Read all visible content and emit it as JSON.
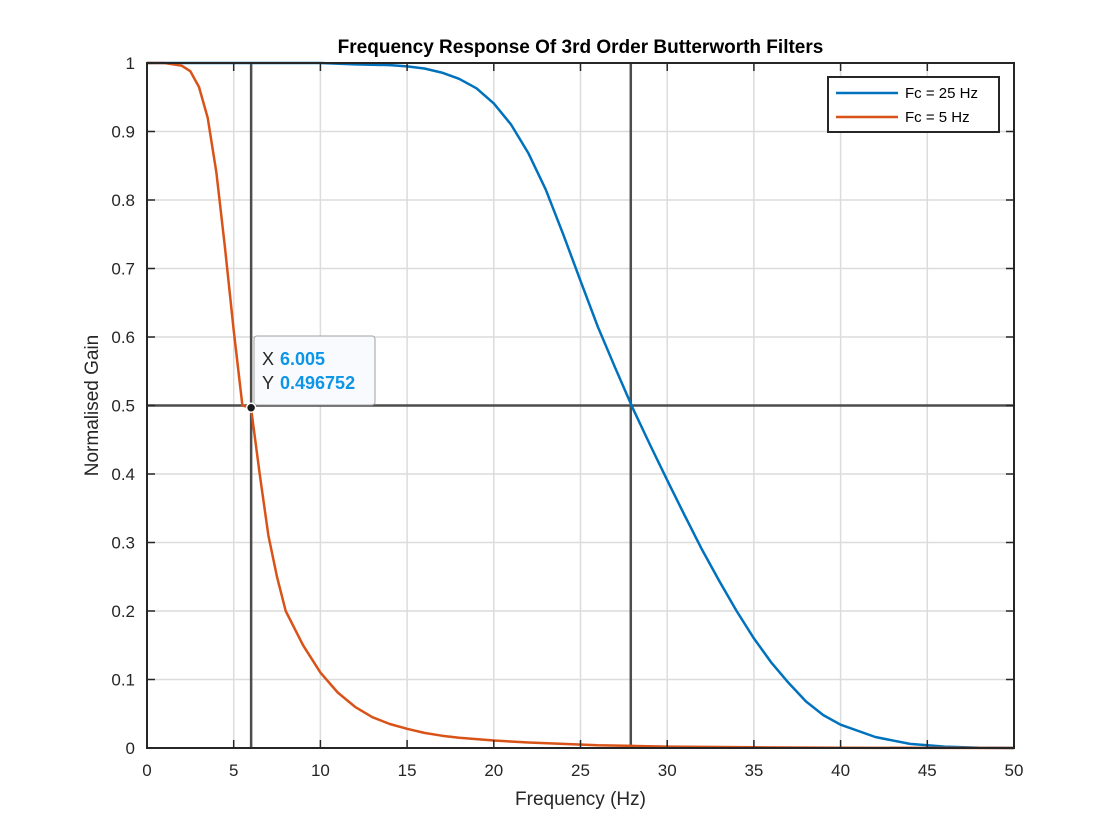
{
  "chart_data": {
    "type": "line",
    "title": "Frequency Response Of 3rd Order Butterworth Filters",
    "xlabel": "Frequency (Hz)",
    "ylabel": "Normalised Gain",
    "xlim": [
      0,
      50
    ],
    "ylim": [
      0,
      1
    ],
    "xticks": [
      "0",
      "5",
      "10",
      "15",
      "20",
      "25",
      "30",
      "35",
      "40",
      "45",
      "50"
    ],
    "yticks": [
      "0",
      "0.1",
      "0.2",
      "0.3",
      "0.4",
      "0.5",
      "0.6",
      "0.7",
      "0.8",
      "0.9",
      "1"
    ],
    "grid": true,
    "box": true,
    "legend_position": "top-right",
    "x": [
      0,
      1,
      2,
      2.5,
      3,
      3.5,
      4,
      4.5,
      5,
      5.5,
      6,
      6.5,
      7,
      7.5,
      8,
      9,
      10,
      11,
      12,
      13,
      14,
      15,
      16,
      17,
      18,
      20,
      22,
      24,
      26,
      28,
      30,
      35,
      40,
      45,
      50
    ],
    "series": [
      {
        "name": "Fc = 25 Hz",
        "color": "#0072BD",
        "x": [
          0,
          5,
          10,
          12,
          14,
          15,
          16,
          17,
          18,
          19,
          20,
          21,
          22,
          23,
          24,
          25,
          26,
          27,
          28,
          29,
          30,
          31,
          32,
          33,
          34,
          35,
          36,
          37,
          38,
          39,
          40,
          42,
          44,
          46,
          48,
          50
        ],
        "values": [
          1,
          1,
          1,
          0.998,
          0.997,
          0.995,
          0.992,
          0.986,
          0.977,
          0.963,
          0.941,
          0.91,
          0.868,
          0.815,
          0.75,
          0.682,
          0.615,
          0.555,
          0.497,
          0.443,
          0.391,
          0.34,
          0.29,
          0.244,
          0.2,
          0.16,
          0.125,
          0.095,
          0.068,
          0.048,
          0.034,
          0.016,
          0.006,
          0.002,
          0.0005,
          0
        ]
      },
      {
        "name": "Fc = 5 Hz",
        "color": "#D95319",
        "values": [
          1,
          1,
          0.996,
          0.988,
          0.965,
          0.92,
          0.84,
          0.73,
          0.61,
          0.5,
          0.496752,
          0.4,
          0.31,
          0.25,
          0.2,
          0.15,
          0.11,
          0.081,
          0.06,
          0.045,
          0.035,
          0.028,
          0.022,
          0.018,
          0.015,
          0.011,
          0.008,
          0.006,
          0.004,
          0.003,
          0.002,
          0.001,
          0.0005,
          0.0002,
          0
        ]
      }
    ],
    "reference_lines": {
      "vertical": [
        6.005,
        27.9
      ],
      "horizontal": [
        0.5
      ],
      "color": "#4d4d4d"
    },
    "datatip": {
      "x_key": "X",
      "x_value": "6.005",
      "y_key": "Y",
      "y_value": "0.496752",
      "point": [
        6.005,
        0.496752
      ]
    }
  }
}
